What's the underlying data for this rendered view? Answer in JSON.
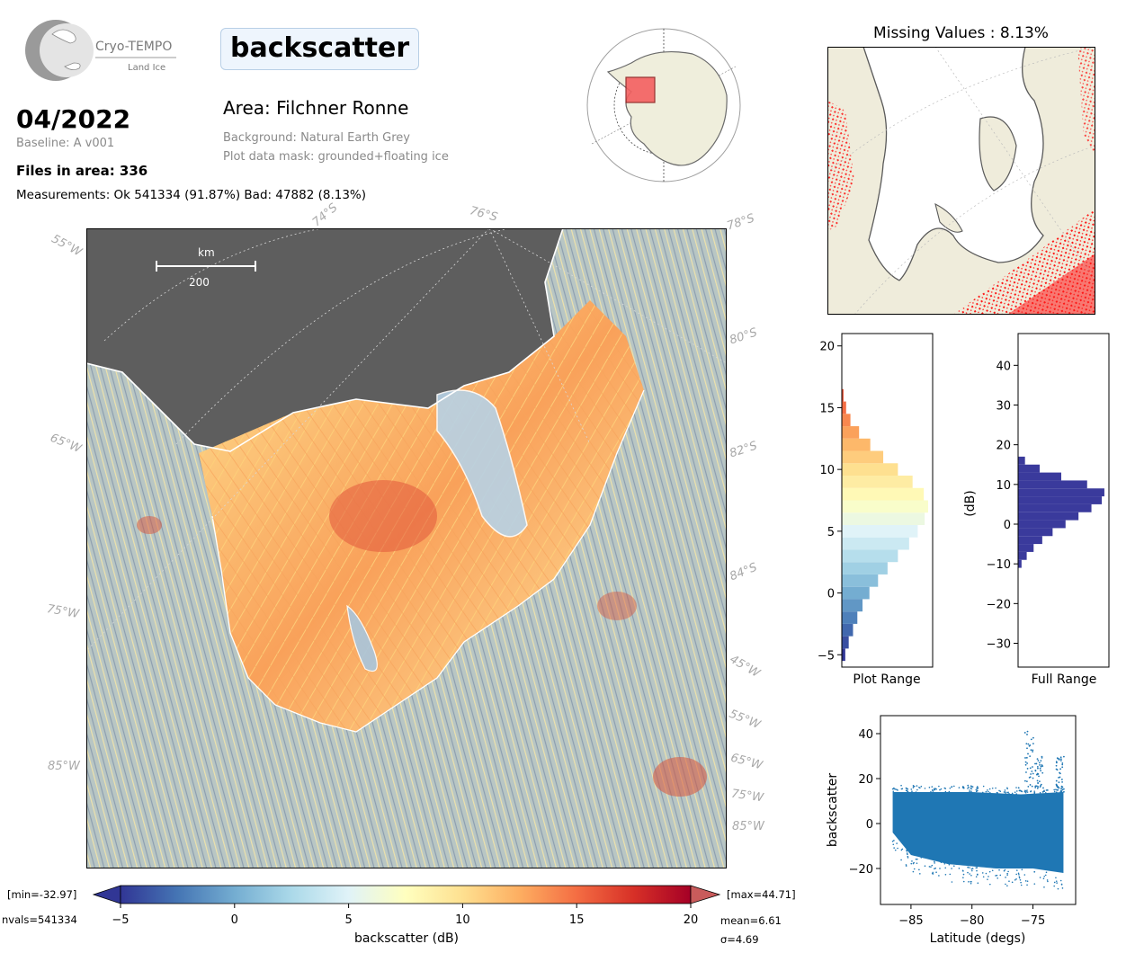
{
  "header": {
    "logo_name": "Cryo-TEMPO",
    "logo_sub": "Land Ice",
    "variable": "backscatter",
    "date": "04/2022",
    "baseline": "Baseline: A v001",
    "area": "Area: Filchner Ronne",
    "background": "Background: Natural Earth Grey",
    "mask": "Plot data mask: grounded+floating ice",
    "files": "Files in area: 336",
    "measurements": "Measurements: Ok 541334 (91.87%) Bad: 47882 (8.13%)"
  },
  "main_map": {
    "scalebar_unit": "km",
    "scalebar_value": "200",
    "lat_labels": [
      "74°S",
      "76°S",
      "78°S",
      "80°S",
      "82°S",
      "84°S"
    ],
    "lon_labels_left": [
      "55°W",
      "65°W",
      "75°W",
      "85°W"
    ],
    "lon_labels_right": [
      "45°W",
      "55°W",
      "65°W",
      "75°W",
      "85°W"
    ]
  },
  "missing_panel": {
    "title": "Missing Values : 8.13%"
  },
  "colorbar": {
    "min_label": "[min=-32.97]",
    "max_label": "[max=44.71]",
    "nvals": "nvals=541334",
    "mean": "mean=6.61",
    "sigma": "σ=4.69",
    "xlabel": "backscatter (dB)",
    "ticks": [
      "-5",
      "0",
      "5",
      "10",
      "15",
      "20"
    ],
    "range": [
      -5,
      20
    ],
    "colors": [
      "#313695",
      "#4575b4",
      "#74add1",
      "#abd9e9",
      "#e0f3f8",
      "#ffffbf",
      "#fee090",
      "#fdae61",
      "#f46d43",
      "#d73027",
      "#a50026"
    ]
  },
  "chart_data": [
    {
      "type": "bar",
      "orientation": "horizontal",
      "xlabel": "Plot Range",
      "ylim": [
        -6,
        21
      ],
      "yticks": [
        "-5",
        "0",
        "5",
        "10",
        "15",
        "20"
      ],
      "bins_center": [
        -5,
        -4,
        -3,
        -2,
        -1,
        0,
        1,
        2,
        3,
        4,
        5,
        6,
        7,
        8,
        9,
        10,
        11,
        12,
        13,
        14,
        15,
        16
      ],
      "values": [
        0.04,
        0.08,
        0.13,
        0.18,
        0.24,
        0.32,
        0.42,
        0.53,
        0.65,
        0.78,
        0.88,
        0.96,
        1.0,
        0.95,
        0.82,
        0.65,
        0.48,
        0.33,
        0.2,
        0.1,
        0.05,
        0.02
      ]
    },
    {
      "type": "bar",
      "orientation": "horizontal",
      "xlabel": "Full Range",
      "ylabel": "(dB)",
      "ylim": [
        -36,
        48
      ],
      "yticks": [
        "-30",
        "-20",
        "-10",
        "0",
        "10",
        "20",
        "30",
        "40"
      ],
      "color": "#3a3a9c",
      "bins_center": [
        -10,
        -8,
        -6,
        -4,
        -2,
        0,
        2,
        4,
        6,
        8,
        10,
        12,
        14,
        16
      ],
      "values": [
        0.04,
        0.1,
        0.18,
        0.28,
        0.4,
        0.55,
        0.7,
        0.85,
        0.97,
        1.0,
        0.8,
        0.5,
        0.25,
        0.08
      ]
    },
    {
      "type": "scatter",
      "xlabel": "Latitude (degs)",
      "ylabel": "backscatter",
      "xlim": [
        -87.5,
        -71.5
      ],
      "ylim": [
        -36,
        48
      ],
      "xticks": [
        "-85",
        "-80",
        "-75"
      ],
      "yticks": [
        "-20",
        "0",
        "20",
        "40"
      ],
      "color": "#1f77b4",
      "band": {
        "x_start": -86.5,
        "x_end": -72.5,
        "upper": [
          [
            -86.5,
            14
          ],
          [
            -84,
            14
          ],
          [
            -80,
            14
          ],
          [
            -76,
            13
          ],
          [
            -72.5,
            14
          ]
        ],
        "lower": [
          [
            -86.5,
            -4
          ],
          [
            -85,
            -14
          ],
          [
            -82,
            -18
          ],
          [
            -78,
            -20
          ],
          [
            -75,
            -20
          ],
          [
            -72.5,
            -22
          ]
        ]
      },
      "spikes": [
        {
          "x": -75.3,
          "y_top": 41,
          "y_bottom": 14
        },
        {
          "x": -74.5,
          "y_top": 30,
          "y_bottom": 14
        },
        {
          "x": -72.8,
          "y_top": 30,
          "y_bottom": 14
        }
      ]
    }
  ]
}
